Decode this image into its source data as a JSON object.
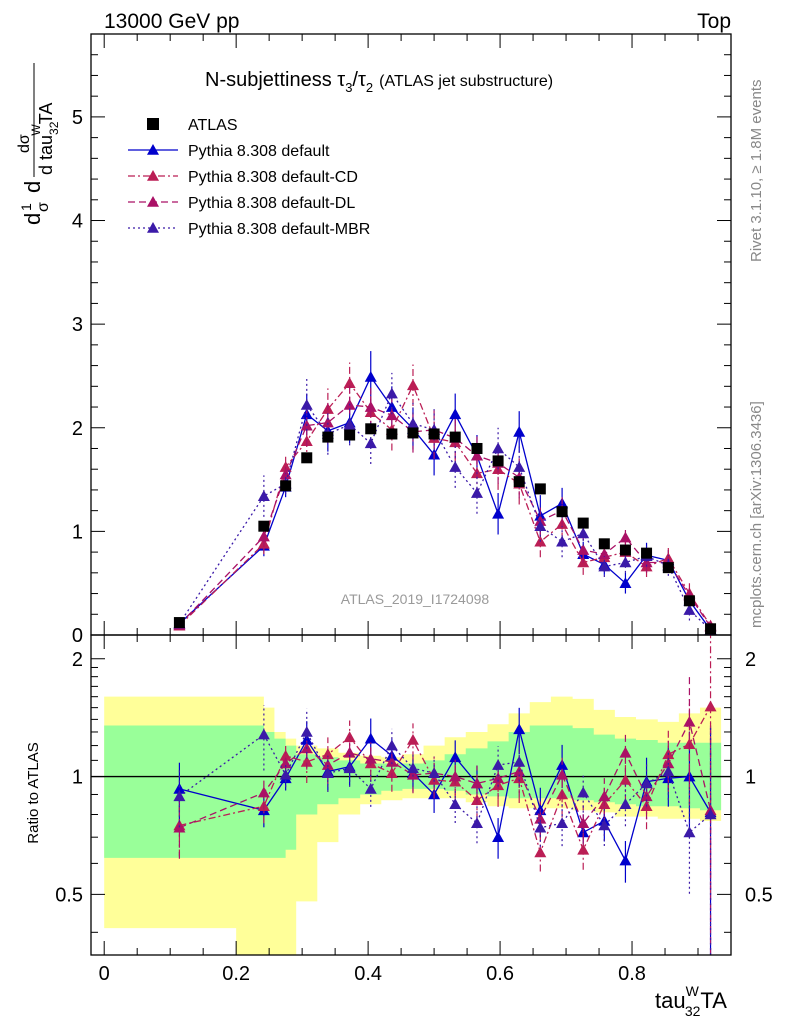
{
  "header": {
    "beam_label": "13000 GeV pp",
    "process_label": "Top"
  },
  "side_labels": {
    "rivet": "Rivet 3.1.10, ≥ 1.8M events",
    "mcplots": "mcplots.cern.ch [arXiv:1306.3436]"
  },
  "watermark": "ATLAS_2019_I1724098",
  "chart_data": [
    {
      "type": "scatter",
      "panel": "main",
      "title_main": "N-subjettiness τ",
      "title_sub1": "3",
      "title_slash": "/τ",
      "title_sub2": "2",
      "title_extra": "(ATLAS jet substructure)",
      "ylabel": "1/σ dσ/d tau_32^W TA",
      "ylabel_parts": {
        "d": "d",
        "one": "1",
        "sigma": "σ",
        "dsigma": "dσ",
        "den": "d tau",
        "sup": "W",
        "sub": "32",
        "tail": "TA"
      },
      "xlim": [
        -0.02,
        0.95
      ],
      "ylim": [
        0,
        5.8
      ],
      "yticks": [
        0,
        1,
        2,
        3,
        4,
        5
      ],
      "x": [
        0.114,
        0.242,
        0.275,
        0.307,
        0.339,
        0.372,
        0.404,
        0.436,
        0.468,
        0.5,
        0.532,
        0.565,
        0.597,
        0.629,
        0.661,
        0.694,
        0.726,
        0.758,
        0.79,
        0.822,
        0.855,
        0.887,
        0.919
      ],
      "series": [
        {
          "name": "ATLAS",
          "color": "#000000",
          "marker": "square",
          "line": "none",
          "values": [
            0.12,
            1.05,
            1.44,
            1.71,
            1.91,
            1.93,
            1.99,
            1.94,
            1.95,
            1.94,
            1.91,
            1.8,
            1.68,
            1.48,
            1.41,
            1.19,
            1.08,
            0.88,
            0.82,
            0.79,
            0.65,
            0.33,
            0.06
          ]
        },
        {
          "name": "Pythia 8.308 default",
          "color": "#0000cc",
          "marker": "triangle",
          "line": "solid",
          "values": [
            0.11,
            0.86,
            1.43,
            2.13,
            1.97,
            2.05,
            2.49,
            2.2,
            1.99,
            1.74,
            2.13,
            1.73,
            1.17,
            1.96,
            1.15,
            1.27,
            0.78,
            0.68,
            0.5,
            0.77,
            0.72,
            0.33,
            0.05
          ],
          "errors": [
            0.02,
            0.1,
            0.1,
            0.2,
            0.2,
            0.2,
            0.25,
            0.2,
            0.2,
            0.2,
            0.2,
            0.2,
            0.2,
            0.2,
            0.2,
            0.15,
            0.12,
            0.1,
            0.1,
            0.12,
            0.1,
            0.1,
            0.04
          ]
        },
        {
          "name": "Pythia 8.308 default-CD",
          "color": "#bb1e55",
          "marker": "triangle",
          "line": "dashdot",
          "values": [
            0.09,
            0.88,
            1.62,
            1.87,
            2.18,
            2.43,
            2.15,
            1.98,
            2.41,
            1.9,
            1.86,
            1.56,
            1.6,
            1.46,
            0.9,
            1.07,
            0.7,
            0.75,
            0.8,
            0.66,
            0.74,
            0.4,
            0.09
          ],
          "errors": [
            0.02,
            0.1,
            0.1,
            0.2,
            0.2,
            0.2,
            0.2,
            0.2,
            0.2,
            0.2,
            0.2,
            0.2,
            0.2,
            0.2,
            0.15,
            0.15,
            0.12,
            0.1,
            0.1,
            0.1,
            0.1,
            0.1,
            0.04
          ]
        },
        {
          "name": "Pythia 8.308 default-DL",
          "color": "#aa1166",
          "marker": "triangle",
          "line": "dashed",
          "values": [
            0.1,
            0.95,
            1.55,
            2.02,
            2.05,
            2.22,
            2.2,
            2.12,
            1.96,
            1.98,
            1.9,
            1.73,
            1.66,
            1.52,
            1.1,
            1.2,
            0.82,
            0.78,
            0.94,
            0.7,
            0.7,
            0.38,
            0.08
          ],
          "errors": [
            0.02,
            0.1,
            0.1,
            0.2,
            0.2,
            0.2,
            0.2,
            0.2,
            0.2,
            0.2,
            0.2,
            0.2,
            0.2,
            0.2,
            0.15,
            0.15,
            0.12,
            0.1,
            0.1,
            0.1,
            0.1,
            0.1,
            0.04
          ]
        },
        {
          "name": "Pythia 8.308 default-MBR",
          "color": "#3b1aa8",
          "marker": "triangle",
          "line": "dotted",
          "values": [
            0.11,
            1.34,
            1.46,
            2.22,
            1.94,
            2.03,
            1.85,
            2.33,
            2.04,
            1.98,
            1.62,
            1.37,
            1.8,
            1.62,
            1.05,
            0.9,
            0.98,
            0.66,
            0.7,
            0.76,
            0.67,
            0.24,
            0.05
          ],
          "errors": [
            0.02,
            0.2,
            0.1,
            0.25,
            0.2,
            0.2,
            0.2,
            0.2,
            0.2,
            0.2,
            0.2,
            0.2,
            0.2,
            0.2,
            0.15,
            0.15,
            0.12,
            0.1,
            0.1,
            0.1,
            0.1,
            0.1,
            0.04
          ]
        }
      ]
    },
    {
      "type": "scatter",
      "panel": "ratio",
      "ylabel": "Ratio to ATLAS",
      "xlabel_parts": {
        "base": "tau",
        "sup": "W",
        "sub": "32",
        "tail": "TA"
      },
      "xlim": [
        -0.02,
        0.95
      ],
      "ylim": [
        0.35,
        2.3
      ],
      "log_y": true,
      "ytick_labels": [
        "0.5",
        "1",
        "2"
      ],
      "ytick_values": [
        0.5,
        1,
        2
      ],
      "xtick_labels": [
        "0",
        "0.2",
        "0.4",
        "0.6",
        "0.8"
      ],
      "xtick_values": [
        0,
        0.2,
        0.4,
        0.6,
        0.8
      ],
      "bands": {
        "edges": [
          0.0,
          0.2,
          0.242,
          0.258,
          0.275,
          0.291,
          0.323,
          0.355,
          0.388,
          0.42,
          0.452,
          0.484,
          0.516,
          0.548,
          0.581,
          0.613,
          0.645,
          0.677,
          0.71,
          0.742,
          0.774,
          0.806,
          0.839,
          0.871,
          0.903,
          0.935
        ],
        "yellow_lo": [
          0.41,
          0.32,
          0.32,
          0.32,
          0.32,
          0.48,
          0.68,
          0.8,
          0.85,
          0.87,
          0.88,
          0.88,
          0.88,
          0.86,
          0.84,
          0.83,
          0.83,
          0.83,
          0.82,
          0.81,
          0.79,
          0.79,
          0.78,
          0.78,
          0.77
        ],
        "yellow_hi": [
          1.6,
          1.6,
          1.5,
          1.3,
          1.25,
          1.2,
          1.18,
          1.15,
          1.13,
          1.12,
          1.14,
          1.2,
          1.26,
          1.3,
          1.36,
          1.45,
          1.55,
          1.6,
          1.58,
          1.48,
          1.42,
          1.4,
          1.38,
          1.45,
          1.5
        ],
        "green_lo": [
          0.62,
          0.62,
          0.62,
          0.62,
          0.65,
          0.8,
          0.85,
          0.88,
          0.9,
          0.92,
          0.93,
          0.93,
          0.92,
          0.9,
          0.89,
          0.88,
          0.88,
          0.88,
          0.87,
          0.86,
          0.85,
          0.84,
          0.84,
          0.83,
          0.82
        ],
        "green_hi": [
          1.35,
          1.35,
          1.3,
          1.25,
          1.2,
          1.14,
          1.12,
          1.1,
          1.08,
          1.08,
          1.08,
          1.1,
          1.14,
          1.18,
          1.23,
          1.3,
          1.35,
          1.35,
          1.33,
          1.28,
          1.25,
          1.24,
          1.22,
          1.22,
          1.22
        ]
      },
      "series": [
        {
          "name": "Pythia 8.308 default",
          "values": [
            0.93,
            0.82,
            0.99,
            1.24,
            1.03,
            1.06,
            1.25,
            1.13,
            1.02,
            0.9,
            1.12,
            0.96,
            0.7,
            1.32,
            0.82,
            1.07,
            0.72,
            0.77,
            0.61,
            0.97,
            0.99,
            1.0,
            0.81
          ]
        },
        {
          "name": "Pythia 8.308 default-CD",
          "values": [
            0.75,
            0.84,
            1.13,
            1.09,
            1.14,
            1.26,
            1.08,
            1.02,
            1.24,
            0.98,
            0.97,
            0.87,
            0.95,
            0.99,
            0.64,
            0.9,
            0.65,
            0.85,
            0.98,
            0.84,
            1.14,
            1.21,
            1.51
          ]
        },
        {
          "name": "Pythia 8.308 default-DL",
          "values": [
            0.74,
            0.91,
            1.08,
            1.18,
            1.07,
            1.15,
            1.11,
            1.09,
            1.01,
            1.02,
            1.0,
            0.96,
            0.99,
            1.03,
            0.78,
            1.01,
            0.76,
            0.89,
            1.15,
            0.89,
            1.08,
            1.38,
            0.82
          ]
        },
        {
          "name": "Pythia 8.308 default-MBR",
          "values": [
            0.89,
            1.28,
            1.01,
            1.3,
            1.02,
            1.05,
            0.93,
            1.2,
            1.05,
            1.02,
            0.85,
            0.76,
            1.07,
            1.09,
            0.74,
            0.76,
            0.91,
            0.75,
            0.85,
            0.96,
            1.03,
            0.72,
            0.8
          ]
        }
      ]
    }
  ]
}
